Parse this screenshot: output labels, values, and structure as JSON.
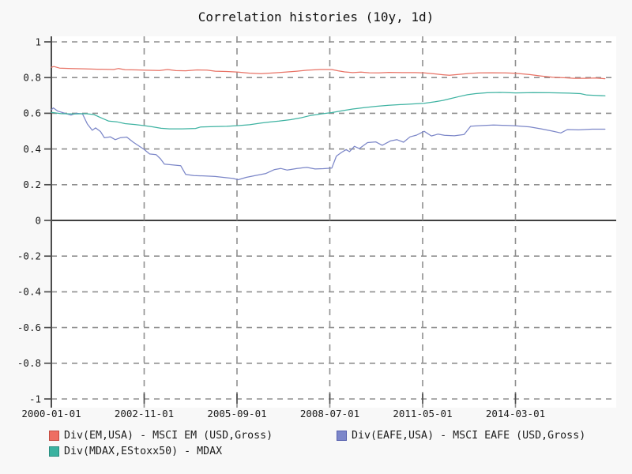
{
  "title": "Correlation histories (10y, 1d)",
  "chart_data": {
    "type": "line",
    "title": "Correlation histories (10y, 1d)",
    "grid": "dashed",
    "legend_position": "bottom",
    "x_axis": {
      "ticks": [
        {
          "label": "2000-01-01",
          "year": 2000.0
        },
        {
          "label": "2002-11-01",
          "year": 2002.8333
        },
        {
          "label": "2005-09-01",
          "year": 2005.6667
        },
        {
          "label": "2008-07-01",
          "year": 2008.5
        },
        {
          "label": "2011-05-01",
          "year": 2011.3333
        },
        {
          "label": "2014-03-01",
          "year": 2014.1667
        }
      ],
      "range_years": [
        2000.0,
        2017.25
      ]
    },
    "y_axis": {
      "ticks": [
        {
          "label": "1",
          "value": 1.0
        },
        {
          "label": "0.8",
          "value": 0.8
        },
        {
          "label": "0.6",
          "value": 0.6
        },
        {
          "label": "0.4",
          "value": 0.4
        },
        {
          "label": "0.2",
          "value": 0.2
        },
        {
          "label": "0",
          "value": 0.0
        },
        {
          "label": "-0.2",
          "value": -0.2
        },
        {
          "label": "-0.4",
          "value": -0.4
        },
        {
          "label": "-0.6",
          "value": -0.6
        },
        {
          "label": "-0.8",
          "value": -0.8
        },
        {
          "label": "-1",
          "value": -1.0
        }
      ],
      "range": [
        -1.06,
        1.04
      ],
      "zero_line": true
    },
    "series": [
      {
        "name": "Div(EM,USA) - MSCI EM (USD,Gross)",
        "line_color": "#e87265",
        "swatch_fill": "#ee6e62",
        "swatch_border": "#c24b41",
        "points": [
          [
            2000.0,
            0.858
          ],
          [
            2000.08,
            0.862
          ],
          [
            2000.25,
            0.853
          ],
          [
            2000.6,
            0.851
          ],
          [
            2001.0,
            0.849
          ],
          [
            2001.4,
            0.847
          ],
          [
            2001.9,
            0.845
          ],
          [
            2002.05,
            0.851
          ],
          [
            2002.25,
            0.844
          ],
          [
            2002.6,
            0.843
          ],
          [
            2002.9,
            0.841
          ],
          [
            2003.3,
            0.84
          ],
          [
            2003.55,
            0.845
          ],
          [
            2003.8,
            0.839
          ],
          [
            2004.1,
            0.838
          ],
          [
            2004.45,
            0.843
          ],
          [
            2004.75,
            0.842
          ],
          [
            2005.0,
            0.836
          ],
          [
            2005.35,
            0.834
          ],
          [
            2005.7,
            0.831
          ],
          [
            2006.05,
            0.825
          ],
          [
            2006.4,
            0.822
          ],
          [
            2006.8,
            0.826
          ],
          [
            2007.1,
            0.83
          ],
          [
            2007.5,
            0.836
          ],
          [
            2007.8,
            0.841
          ],
          [
            2008.2,
            0.845
          ],
          [
            2008.56,
            0.845
          ],
          [
            2008.75,
            0.838
          ],
          [
            2008.95,
            0.832
          ],
          [
            2009.2,
            0.828
          ],
          [
            2009.45,
            0.831
          ],
          [
            2009.7,
            0.827
          ],
          [
            2010.0,
            0.826
          ],
          [
            2010.3,
            0.829
          ],
          [
            2010.7,
            0.828
          ],
          [
            2011.1,
            0.828
          ],
          [
            2011.38,
            0.826
          ],
          [
            2011.7,
            0.821
          ],
          [
            2011.95,
            0.816
          ],
          [
            2012.15,
            0.813
          ],
          [
            2012.45,
            0.818
          ],
          [
            2012.75,
            0.823
          ],
          [
            2013.05,
            0.826
          ],
          [
            2013.45,
            0.827
          ],
          [
            2013.85,
            0.826
          ],
          [
            2014.17,
            0.824
          ],
          [
            2014.6,
            0.817
          ],
          [
            2014.95,
            0.809
          ],
          [
            2015.3,
            0.802
          ],
          [
            2015.65,
            0.799
          ],
          [
            2015.95,
            0.796
          ],
          [
            2016.3,
            0.796
          ],
          [
            2016.6,
            0.798
          ],
          [
            2016.9,
            0.794
          ]
        ]
      },
      {
        "name": "Div(EAFE,USA) - MSCI EAFE (USD,Gross)",
        "line_color": "#7b86c8",
        "swatch_fill": "#7d87ca",
        "swatch_border": "#5761ae",
        "points": [
          [
            2000.0,
            0.62
          ],
          [
            2000.06,
            0.63
          ],
          [
            2000.2,
            0.612
          ],
          [
            2000.45,
            0.598
          ],
          [
            2000.6,
            0.59
          ],
          [
            2000.75,
            0.6
          ],
          [
            2000.95,
            0.597
          ],
          [
            2001.1,
            0.54
          ],
          [
            2001.25,
            0.505
          ],
          [
            2001.35,
            0.518
          ],
          [
            2001.5,
            0.498
          ],
          [
            2001.62,
            0.463
          ],
          [
            2001.8,
            0.468
          ],
          [
            2001.95,
            0.452
          ],
          [
            2002.1,
            0.463
          ],
          [
            2002.3,
            0.467
          ],
          [
            2002.5,
            0.438
          ],
          [
            2002.65,
            0.42
          ],
          [
            2002.83,
            0.398
          ],
          [
            2003.0,
            0.372
          ],
          [
            2003.2,
            0.368
          ],
          [
            2003.33,
            0.345
          ],
          [
            2003.45,
            0.315
          ],
          [
            2003.7,
            0.311
          ],
          [
            2003.95,
            0.306
          ],
          [
            2004.1,
            0.258
          ],
          [
            2004.35,
            0.251
          ],
          [
            2004.7,
            0.249
          ],
          [
            2005.0,
            0.246
          ],
          [
            2005.3,
            0.24
          ],
          [
            2005.55,
            0.235
          ],
          [
            2005.7,
            0.228
          ],
          [
            2005.95,
            0.241
          ],
          [
            2006.25,
            0.252
          ],
          [
            2006.55,
            0.263
          ],
          [
            2006.8,
            0.284
          ],
          [
            2007.0,
            0.291
          ],
          [
            2007.2,
            0.282
          ],
          [
            2007.5,
            0.291
          ],
          [
            2007.8,
            0.297
          ],
          [
            2008.05,
            0.288
          ],
          [
            2008.3,
            0.29
          ],
          [
            2008.56,
            0.293
          ],
          [
            2008.7,
            0.36
          ],
          [
            2008.85,
            0.38
          ],
          [
            2009.0,
            0.397
          ],
          [
            2009.1,
            0.385
          ],
          [
            2009.25,
            0.415
          ],
          [
            2009.4,
            0.402
          ],
          [
            2009.65,
            0.436
          ],
          [
            2009.9,
            0.44
          ],
          [
            2010.1,
            0.421
          ],
          [
            2010.35,
            0.445
          ],
          [
            2010.55,
            0.452
          ],
          [
            2010.75,
            0.438
          ],
          [
            2010.95,
            0.468
          ],
          [
            2011.15,
            0.478
          ],
          [
            2011.38,
            0.499
          ],
          [
            2011.6,
            0.473
          ],
          [
            2011.8,
            0.483
          ],
          [
            2012.0,
            0.477
          ],
          [
            2012.3,
            0.474
          ],
          [
            2012.6,
            0.481
          ],
          [
            2012.8,
            0.528
          ],
          [
            2013.1,
            0.531
          ],
          [
            2013.5,
            0.534
          ],
          [
            2013.9,
            0.532
          ],
          [
            2014.17,
            0.53
          ],
          [
            2014.6,
            0.524
          ],
          [
            2014.95,
            0.513
          ],
          [
            2015.3,
            0.5
          ],
          [
            2015.55,
            0.49
          ],
          [
            2015.75,
            0.509
          ],
          [
            2016.1,
            0.507
          ],
          [
            2016.5,
            0.511
          ],
          [
            2016.9,
            0.511
          ]
        ]
      },
      {
        "name": "Div(MDAX,EStoxx50) - MDAX",
        "line_color": "#3fb3a2",
        "swatch_fill": "#3bb2a0",
        "swatch_border": "#2a8d80",
        "points": [
          [
            2000.0,
            0.605
          ],
          [
            2000.3,
            0.598
          ],
          [
            2000.7,
            0.596
          ],
          [
            2001.05,
            0.598
          ],
          [
            2001.3,
            0.593
          ],
          [
            2001.5,
            0.576
          ],
          [
            2001.75,
            0.556
          ],
          [
            2002.0,
            0.552
          ],
          [
            2002.25,
            0.542
          ],
          [
            2002.55,
            0.537
          ],
          [
            2002.83,
            0.531
          ],
          [
            2003.1,
            0.524
          ],
          [
            2003.35,
            0.516
          ],
          [
            2003.6,
            0.513
          ],
          [
            2004.0,
            0.513
          ],
          [
            2004.4,
            0.515
          ],
          [
            2004.55,
            0.523
          ],
          [
            2004.95,
            0.525
          ],
          [
            2005.35,
            0.527
          ],
          [
            2005.7,
            0.531
          ],
          [
            2006.05,
            0.536
          ],
          [
            2006.4,
            0.545
          ],
          [
            2006.65,
            0.551
          ],
          [
            2006.95,
            0.556
          ],
          [
            2007.3,
            0.564
          ],
          [
            2007.6,
            0.574
          ],
          [
            2007.9,
            0.587
          ],
          [
            2008.25,
            0.597
          ],
          [
            2008.56,
            0.604
          ],
          [
            2008.9,
            0.615
          ],
          [
            2009.2,
            0.624
          ],
          [
            2009.55,
            0.632
          ],
          [
            2009.9,
            0.639
          ],
          [
            2010.3,
            0.645
          ],
          [
            2010.8,
            0.65
          ],
          [
            2011.38,
            0.656
          ],
          [
            2011.7,
            0.664
          ],
          [
            2011.95,
            0.672
          ],
          [
            2012.15,
            0.681
          ],
          [
            2012.45,
            0.694
          ],
          [
            2012.7,
            0.704
          ],
          [
            2012.95,
            0.71
          ],
          [
            2013.3,
            0.715
          ],
          [
            2013.7,
            0.717
          ],
          [
            2014.17,
            0.714
          ],
          [
            2014.7,
            0.716
          ],
          [
            2015.2,
            0.715
          ],
          [
            2015.8,
            0.713
          ],
          [
            2016.15,
            0.71
          ],
          [
            2016.35,
            0.702
          ],
          [
            2016.6,
            0.7
          ],
          [
            2016.9,
            0.698
          ]
        ]
      }
    ]
  }
}
